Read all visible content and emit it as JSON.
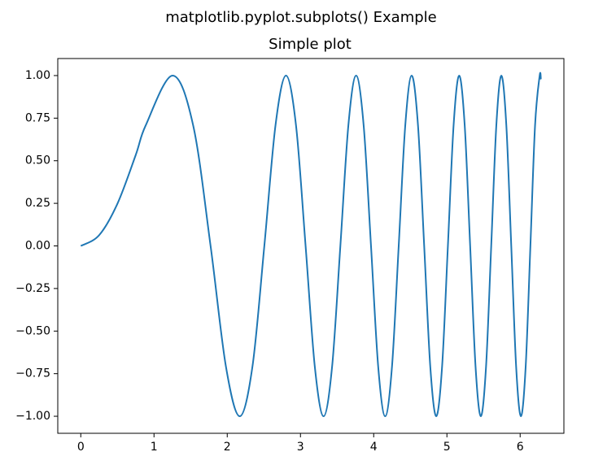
{
  "chart_data": {
    "type": "line",
    "suptitle": "matplotlib.pyplot.subplots() Example",
    "title": "Simple plot",
    "x": [
      0,
      0.25,
      0.5,
      0.75,
      0.8862,
      1.2533,
      1.535,
      1.7725,
      1.9817,
      2.1708,
      2.3447,
      2.5066,
      2.6587,
      2.8025,
      2.9393,
      3.07,
      3.1954,
      3.316,
      3.4324,
      3.5449,
      3.654,
      3.7599,
      3.863,
      3.9633,
      4.0612,
      4.1568,
      4.2502,
      4.3416,
      4.4311,
      4.5189,
      4.605,
      4.6895,
      4.7725,
      4.8541,
      4.9343,
      5.0133,
      5.091,
      5.1675,
      5.243,
      5.3173,
      5.3907,
      5.4631,
      5.5345,
      5.605,
      5.6746,
      5.7434,
      5.8114,
      5.8786,
      5.945,
      6.0107,
      6.0757,
      6.14,
      6.2036,
      6.2666,
      6.2832
    ],
    "series": [
      {
        "color": "#1f77b4",
        "values": [
          0,
          0.0625,
          0.2474,
          0.5334,
          0.707,
          1,
          0.707,
          0,
          -0.707,
          -1,
          -0.707,
          0,
          0.707,
          1,
          0.707,
          0,
          -0.707,
          -1,
          -0.707,
          0,
          0.707,
          1,
          0.707,
          0,
          -0.707,
          -1,
          -0.707,
          0,
          0.707,
          1,
          0.707,
          0,
          -0.707,
          -1,
          -0.707,
          0,
          0.707,
          1,
          0.707,
          0,
          -0.707,
          -1,
          -0.707,
          0,
          0.707,
          1,
          0.707,
          0,
          -0.707,
          -1,
          -0.707,
          0,
          0.707,
          1,
          0.978
        ]
      }
    ],
    "xlim": [
      -0.3142,
      6.5974
    ],
    "ylim": [
      -1.1,
      1.1
    ],
    "xticks": [
      0,
      1,
      2,
      3,
      4,
      5,
      6
    ],
    "yticks": [
      {
        "value": -1,
        "label": "−1.00"
      },
      {
        "value": -0.75,
        "label": "−0.75"
      },
      {
        "value": -0.5,
        "label": "−0.50"
      },
      {
        "value": -0.25,
        "label": "−0.25"
      },
      {
        "value": 0,
        "label": "0.00"
      },
      {
        "value": 0.25,
        "label": "0.25"
      },
      {
        "value": 0.5,
        "label": "0.50"
      },
      {
        "value": 0.75,
        "label": "0.75"
      },
      {
        "value": 1,
        "label": "1.00"
      }
    ]
  }
}
